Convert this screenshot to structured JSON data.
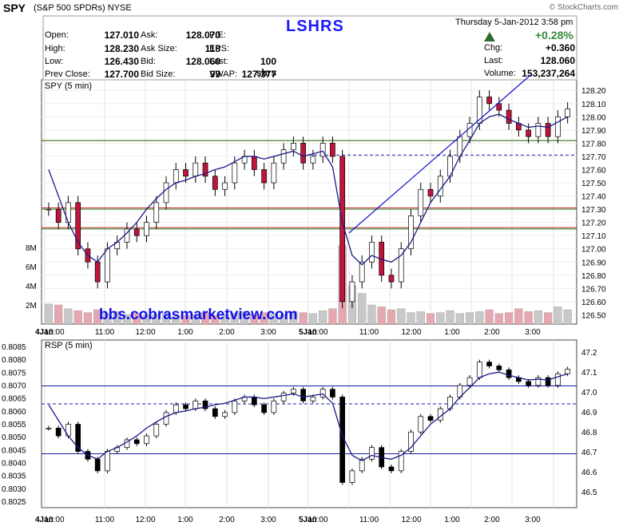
{
  "header": {
    "symbol": "SPY",
    "name": "(S&P 500 SPDRs)",
    "exchange": "NYSE",
    "source": "© StockCharts.com",
    "ticker_label": "LSHRS",
    "date": "Thursday  5-Jan-2012  3:58 pm",
    "pct_change": "+0.28%"
  },
  "quote": {
    "left": [
      {
        "label": "Open:",
        "value": "127.010"
      },
      {
        "label": "High:",
        "value": "128.230"
      },
      {
        "label": "Low:",
        "value": "126.430"
      },
      {
        "label": "Prev Close:",
        "value": "127.700"
      }
    ],
    "mid": [
      {
        "label": "Ask:",
        "value": "128.070"
      },
      {
        "label": "Ask Size:",
        "value": "118"
      },
      {
        "label": "Bid:",
        "value": "128.060"
      },
      {
        "label": "Bid Size:",
        "value": "99"
      }
    ],
    "third": [
      {
        "label": "P/E:",
        "value": ""
      },
      {
        "label": "EPS:",
        "value": ""
      },
      {
        "label": "Last:",
        "value": "100 shrs"
      },
      {
        "label": "VWAP:",
        "value": "127.377"
      }
    ],
    "right": [
      {
        "label": "Chg:",
        "value": "+0.360"
      },
      {
        "label": "Last:",
        "value": "128.060"
      },
      {
        "label": "Volume:",
        "value": "153,237,264"
      }
    ]
  },
  "watermark": "bbs.cobrasmarketview.com",
  "chart_data": [
    {
      "type": "candlestick",
      "title": "SPY (5 min)",
      "y_ticks": [
        "128.20",
        "128.10",
        "128.00",
        "127.90",
        "127.80",
        "127.70",
        "127.60",
        "127.50",
        "127.40",
        "127.30",
        "127.20",
        "127.10",
        "127.00",
        "126.90",
        "126.80",
        "126.70",
        "126.60",
        "126.50"
      ],
      "volume_ticks": [
        "8M",
        "6M",
        "4M",
        "2M"
      ],
      "x_ticks": [
        "4Jan",
        "10:00",
        "11:00",
        "12:00",
        "1:00",
        "2:00",
        "3:00",
        "5Jan",
        "10:00",
        "11:00",
        "12:00",
        "1:00",
        "2:00",
        "3:00"
      ],
      "ylim": [
        126.43,
        128.28
      ],
      "horizontal_lines": [
        {
          "value": 127.82,
          "color": "#cc2222"
        },
        {
          "value": 127.31,
          "color": "#cc2222"
        },
        {
          "value": 127.16,
          "color": "#cc2222"
        },
        {
          "value": 127.82,
          "color": "#228822"
        },
        {
          "value": 127.3,
          "color": "#228822"
        },
        {
          "value": 127.15,
          "color": "#228822"
        }
      ],
      "close_series": [
        127.3,
        127.2,
        127.35,
        127.0,
        126.9,
        126.75,
        127.0,
        127.05,
        127.15,
        127.1,
        127.2,
        127.35,
        127.5,
        127.6,
        127.55,
        127.65,
        127.55,
        127.45,
        127.5,
        127.65,
        127.7,
        127.6,
        127.5,
        127.65,
        127.75,
        127.8,
        127.65,
        127.7,
        127.8,
        127.7,
        126.6,
        126.75,
        126.9,
        127.05,
        126.8,
        126.75,
        127.0,
        127.25,
        127.45,
        127.4,
        127.55,
        127.7,
        127.85,
        127.95,
        128.15,
        128.1,
        128.05,
        127.95,
        127.9,
        127.85,
        127.95,
        127.85,
        128.0,
        128.06
      ],
      "sma_series": [
        127.6,
        127.4,
        127.2,
        127.05,
        126.95,
        126.9,
        127.0,
        127.05,
        127.12,
        127.2,
        127.3,
        127.38,
        127.45,
        127.5,
        127.52,
        127.55,
        127.57,
        127.6,
        127.62,
        127.66,
        127.7,
        127.7,
        127.68,
        127.7,
        127.72,
        127.74,
        127.7,
        127.72,
        127.74,
        127.62,
        127.2,
        126.95,
        126.88,
        126.95,
        126.92,
        126.9,
        126.95,
        127.05,
        127.2,
        127.35,
        127.45,
        127.55,
        127.7,
        127.82,
        127.95,
        128.0,
        128.02,
        127.98,
        127.95,
        127.92,
        127.93,
        127.92,
        127.96,
        128.0
      ],
      "volume_millions": [
        2.1,
        2.0,
        1.6,
        1.4,
        1.2,
        1.5,
        1.1,
        1.3,
        1.0,
        1.1,
        0.9,
        1.0,
        1.1,
        0.8,
        0.9,
        1.0,
        1.2,
        0.9,
        1.0,
        1.1,
        1.3,
        1.0,
        1.2,
        1.1,
        1.0,
        1.3,
        1.2,
        1.1,
        1.4,
        1.6,
        8.2,
        4.0,
        3.2,
        2.0,
        1.8,
        1.5,
        1.6,
        1.2,
        1.3,
        1.1,
        1.2,
        1.4,
        1.1,
        1.2,
        1.3,
        1.5,
        1.1,
        1.2,
        1.6,
        1.3,
        1.4,
        1.2,
        1.8,
        1.5
      ]
    },
    {
      "type": "line",
      "title": "RSP (5 min)",
      "y_ticks_left": [
        "0.8085",
        "0.8080",
        "0.8075",
        "0.8070",
        "0.8065",
        "0.8060",
        "0.8055",
        "0.8050",
        "0.8045",
        "0.8040",
        "0.8035",
        "0.8030",
        "0.8025"
      ],
      "y_ticks_right": [
        "47.2",
        "47.1",
        "47.0",
        "46.9",
        "46.8",
        "46.7",
        "46.6",
        "46.5"
      ],
      "x_ticks": [
        "4Jan",
        "10:00",
        "11:00",
        "12:00",
        "1:00",
        "2:00",
        "3:00",
        "5Jan",
        "10:00",
        "11:00",
        "12:00",
        "1:00",
        "2:00",
        "3:00"
      ],
      "ylim": [
        46.42,
        47.26
      ],
      "horizontal_lines": [
        {
          "value": 47.03,
          "color": "#1a1aa8"
        },
        {
          "value": 46.94,
          "color": "#1a1aa8"
        },
        {
          "value": 46.69,
          "color": "#1a1aa8"
        }
      ]
    }
  ]
}
